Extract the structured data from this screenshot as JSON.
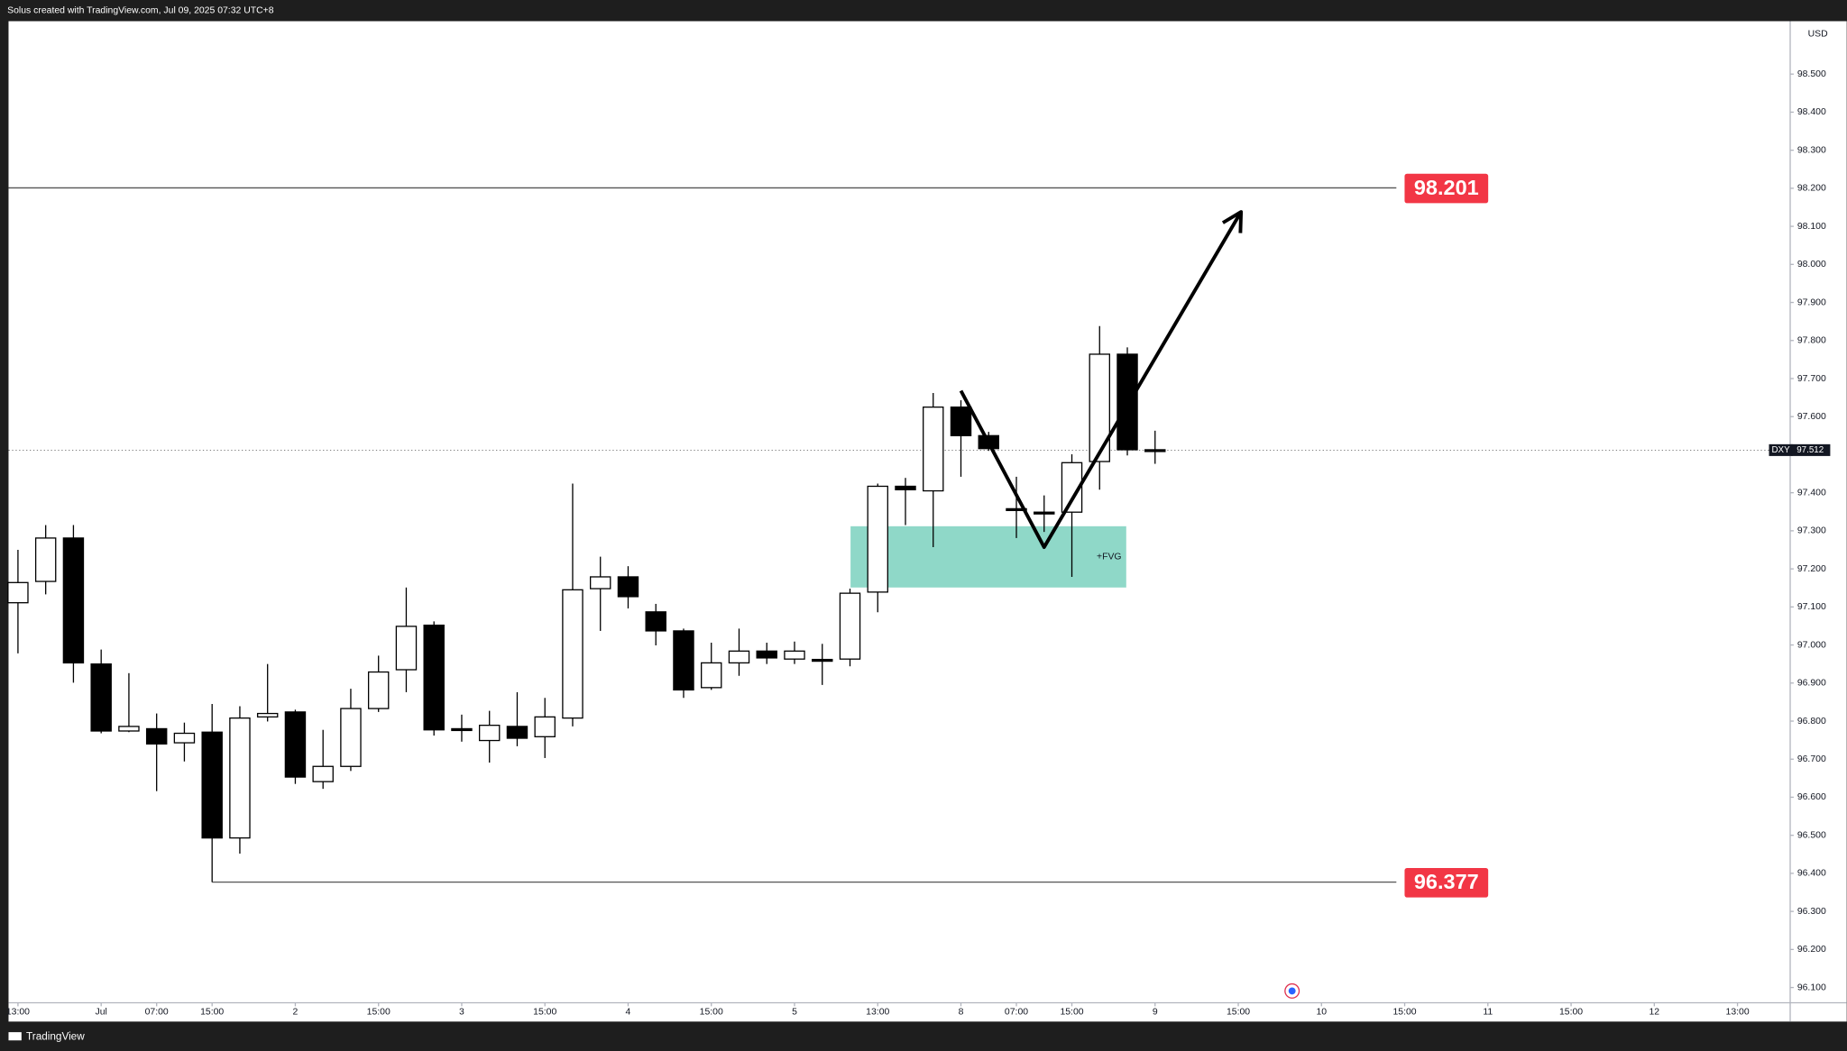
{
  "header": {
    "text": "Solus created with TradingView.com, Jul 09, 2025 07:32 UTC+8"
  },
  "footer": {
    "brand": "TradingView"
  },
  "chart_data": {
    "type": "candlestick",
    "currency": "USD",
    "up_color": "#ffffff",
    "down_color": "#000000",
    "xlim": [
      -0.34,
      63.9
    ],
    "ylim": [
      96.06,
      98.639
    ],
    "xticks": [
      {
        "value": 0,
        "label": "13:00"
      },
      {
        "value": 3,
        "label": "Jul"
      },
      {
        "value": 5,
        "label": "07:00"
      },
      {
        "value": 7,
        "label": "15:00"
      },
      {
        "value": 10,
        "label": "2"
      },
      {
        "value": 13,
        "label": "15:00"
      },
      {
        "value": 16,
        "label": "3"
      },
      {
        "value": 19,
        "label": "15:00"
      },
      {
        "value": 22,
        "label": "4"
      },
      {
        "value": 25,
        "label": "15:00"
      },
      {
        "value": 28,
        "label": "5"
      },
      {
        "value": 31,
        "label": "13:00"
      },
      {
        "value": 34,
        "label": "8"
      },
      {
        "value": 36,
        "label": "07:00"
      },
      {
        "value": 38,
        "label": "15:00"
      },
      {
        "value": 41,
        "label": "9"
      },
      {
        "value": 44,
        "label": "15:00"
      },
      {
        "value": 47,
        "label": "10"
      },
      {
        "value": 50,
        "label": "15:00"
      },
      {
        "value": 53,
        "label": "11"
      },
      {
        "value": 56,
        "label": "15:00"
      },
      {
        "value": 59,
        "label": "12"
      },
      {
        "value": 62,
        "label": "13:00"
      }
    ],
    "yticks": [
      {
        "value": 96.1,
        "label": "96.100"
      },
      {
        "value": 96.2,
        "label": "96.200"
      },
      {
        "value": 96.3,
        "label": "96.300"
      },
      {
        "value": 96.4,
        "label": "96.400"
      },
      {
        "value": 96.5,
        "label": "96.500"
      },
      {
        "value": 96.6,
        "label": "96.600"
      },
      {
        "value": 96.7,
        "label": "96.700"
      },
      {
        "value": 96.8,
        "label": "96.800"
      },
      {
        "value": 96.9,
        "label": "96.900"
      },
      {
        "value": 97.0,
        "label": "97.000"
      },
      {
        "value": 97.1,
        "label": "97.100"
      },
      {
        "value": 97.2,
        "label": "97.200"
      },
      {
        "value": 97.3,
        "label": "97.300"
      },
      {
        "value": 97.4,
        "label": "97.400"
      },
      {
        "value": 97.6,
        "label": "97.600"
      },
      {
        "value": 97.7,
        "label": "97.700"
      },
      {
        "value": 97.8,
        "label": "97.800"
      },
      {
        "value": 97.9,
        "label": "97.900"
      },
      {
        "value": 98.0,
        "label": "98.000"
      },
      {
        "value": 98.1,
        "label": "98.100"
      },
      {
        "value": 98.2,
        "label": "98.200"
      },
      {
        "value": 98.3,
        "label": "98.300"
      },
      {
        "value": 98.4,
        "label": "98.400"
      },
      {
        "value": 98.5,
        "label": "98.500"
      }
    ],
    "open": [
      97.111,
      97.167,
      97.281,
      96.95,
      96.774,
      96.78,
      96.743,
      96.771,
      96.493,
      96.811,
      96.824,
      96.641,
      96.681,
      96.833,
      96.935,
      97.052,
      96.78,
      96.749,
      96.786,
      96.759,
      96.808,
      97.148,
      97.179,
      97.087,
      97.037,
      96.888,
      96.953,
      96.984,
      96.963,
      96.962,
      96.963,
      97.139,
      97.417,
      97.405,
      97.625,
      97.55,
      97.358,
      97.349,
      97.349,
      97.482,
      97.764,
      97.513
    ],
    "high": [
      97.25,
      97.315,
      97.315,
      96.988,
      96.926,
      96.82,
      96.796,
      96.845,
      96.839,
      96.95,
      96.83,
      96.777,
      96.885,
      96.972,
      97.151,
      97.062,
      96.817,
      96.827,
      96.876,
      96.861,
      97.424,
      97.232,
      97.207,
      97.108,
      97.043,
      97.006,
      97.043,
      97.006,
      97.009,
      97.003,
      97.148,
      97.424,
      97.439,
      97.662,
      97.643,
      97.56,
      97.442,
      97.393,
      97.501,
      97.838,
      97.782,
      97.563
    ],
    "low": [
      96.978,
      97.133,
      96.901,
      96.768,
      96.771,
      96.616,
      96.694,
      96.377,
      96.452,
      96.799,
      96.635,
      96.622,
      96.669,
      96.824,
      96.876,
      96.762,
      96.746,
      96.691,
      96.734,
      96.703,
      96.786,
      97.037,
      97.096,
      96.999,
      96.861,
      96.882,
      96.919,
      96.95,
      96.95,
      96.895,
      96.944,
      97.086,
      97.315,
      97.257,
      97.442,
      97.51,
      97.281,
      97.297,
      97.179,
      97.408,
      97.498,
      97.476
    ],
    "close": [
      97.164,
      97.281,
      96.953,
      96.774,
      96.786,
      96.74,
      96.768,
      96.493,
      96.808,
      96.82,
      96.653,
      96.681,
      96.833,
      96.929,
      97.049,
      96.777,
      96.777,
      96.789,
      96.755,
      96.811,
      97.145,
      97.179,
      97.127,
      97.037,
      96.882,
      96.953,
      96.984,
      96.966,
      96.984,
      96.958,
      97.136,
      97.417,
      97.408,
      97.625,
      97.55,
      97.516,
      97.355,
      97.346,
      97.479,
      97.764,
      97.513,
      97.512
    ],
    "levels": [
      {
        "value": 98.201,
        "label": "98.201",
        "x_start": -0.34,
        "x_end": 49.7
      },
      {
        "value": 96.377,
        "label": "96.377",
        "x_start": 7,
        "x_end": 49.7
      }
    ],
    "zone": {
      "label": "+FVG",
      "x_start": 30.02,
      "x_end": 39.96,
      "top": 97.312,
      "bottom": 97.151,
      "color": "#8fd8c8"
    },
    "arrow": {
      "x": [
        34,
        37,
        44.1
      ],
      "y": [
        97.668,
        97.257,
        98.138
      ]
    },
    "last_price": {
      "symbol": "DXY",
      "value": 97.512,
      "label": "97.512"
    }
  }
}
